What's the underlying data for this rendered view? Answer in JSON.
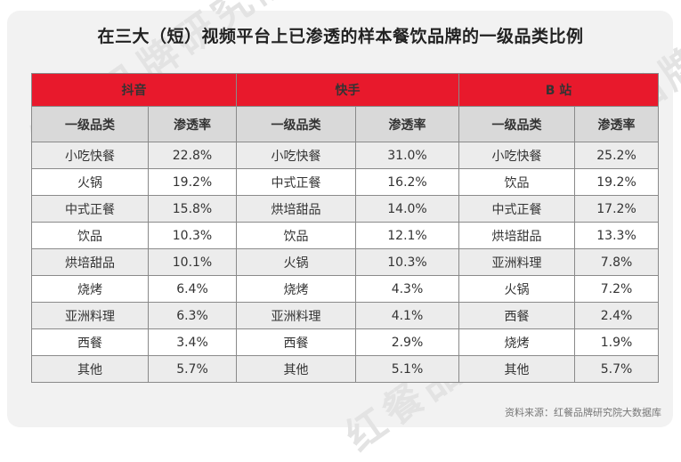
{
  "title": "在三大（短）视频平台上已渗透的样本餐饮品牌的一级品类比例",
  "source": "资料来源：红餐品牌研究院大数据库",
  "watermark": "红餐品牌研究院",
  "colors": {
    "header": "#e8192c",
    "subheader": "#d9d9d9",
    "stripe": "#ececec"
  },
  "table": {
    "col_label": "一级品类",
    "col_value": "渗透率",
    "platforms": [
      {
        "name": "抖音",
        "rows": [
          {
            "category": "小吃快餐",
            "rate": "22.8%"
          },
          {
            "category": "火锅",
            "rate": "19.2%"
          },
          {
            "category": "中式正餐",
            "rate": "15.8%"
          },
          {
            "category": "饮品",
            "rate": "10.3%"
          },
          {
            "category": "烘培甜品",
            "rate": "10.1%"
          },
          {
            "category": "烧烤",
            "rate": "6.4%"
          },
          {
            "category": "亚洲料理",
            "rate": "6.3%"
          },
          {
            "category": "西餐",
            "rate": "3.4%"
          },
          {
            "category": "其他",
            "rate": "5.7%"
          }
        ]
      },
      {
        "name": "快手",
        "rows": [
          {
            "category": "小吃快餐",
            "rate": "31.0%"
          },
          {
            "category": "中式正餐",
            "rate": "16.2%"
          },
          {
            "category": "烘培甜品",
            "rate": "14.0%"
          },
          {
            "category": "饮品",
            "rate": "12.1%"
          },
          {
            "category": "火锅",
            "rate": "10.3%"
          },
          {
            "category": "烧烤",
            "rate": "4.3%"
          },
          {
            "category": "亚洲料理",
            "rate": "4.1%"
          },
          {
            "category": "西餐",
            "rate": "2.9%"
          },
          {
            "category": "其他",
            "rate": "5.1%"
          }
        ]
      },
      {
        "name": "B 站",
        "rows": [
          {
            "category": "小吃快餐",
            "rate": "25.2%"
          },
          {
            "category": "饮品",
            "rate": "19.2%"
          },
          {
            "category": "中式正餐",
            "rate": "17.2%"
          },
          {
            "category": "烘培甜品",
            "rate": "13.3%"
          },
          {
            "category": "亚洲料理",
            "rate": "7.8%"
          },
          {
            "category": "火锅",
            "rate": "7.2%"
          },
          {
            "category": "西餐",
            "rate": "2.4%"
          },
          {
            "category": "烧烤",
            "rate": "1.9%"
          },
          {
            "category": "其他",
            "rate": "5.7%"
          }
        ]
      }
    ]
  },
  "chart_data": {
    "type": "table",
    "title": "在三大（短）视频平台上已渗透的样本餐饮品牌的一级品类比例",
    "columns": [
      "一级品类",
      "渗透率"
    ],
    "series": [
      {
        "name": "抖音",
        "categories": [
          "小吃快餐",
          "火锅",
          "中式正餐",
          "饮品",
          "烘培甜品",
          "烧烤",
          "亚洲料理",
          "西餐",
          "其他"
        ],
        "values": [
          22.8,
          19.2,
          15.8,
          10.3,
          10.1,
          6.4,
          6.3,
          3.4,
          5.7
        ]
      },
      {
        "name": "快手",
        "categories": [
          "小吃快餐",
          "中式正餐",
          "烘培甜品",
          "饮品",
          "火锅",
          "烧烤",
          "亚洲料理",
          "西餐",
          "其他"
        ],
        "values": [
          31.0,
          16.2,
          14.0,
          12.1,
          10.3,
          4.3,
          4.1,
          2.9,
          5.1
        ]
      },
      {
        "name": "B 站",
        "categories": [
          "小吃快餐",
          "饮品",
          "中式正餐",
          "烘培甜品",
          "亚洲料理",
          "火锅",
          "西餐",
          "烧烤",
          "其他"
        ],
        "values": [
          25.2,
          19.2,
          17.2,
          13.3,
          7.8,
          7.2,
          2.4,
          1.9,
          5.7
        ]
      }
    ]
  }
}
